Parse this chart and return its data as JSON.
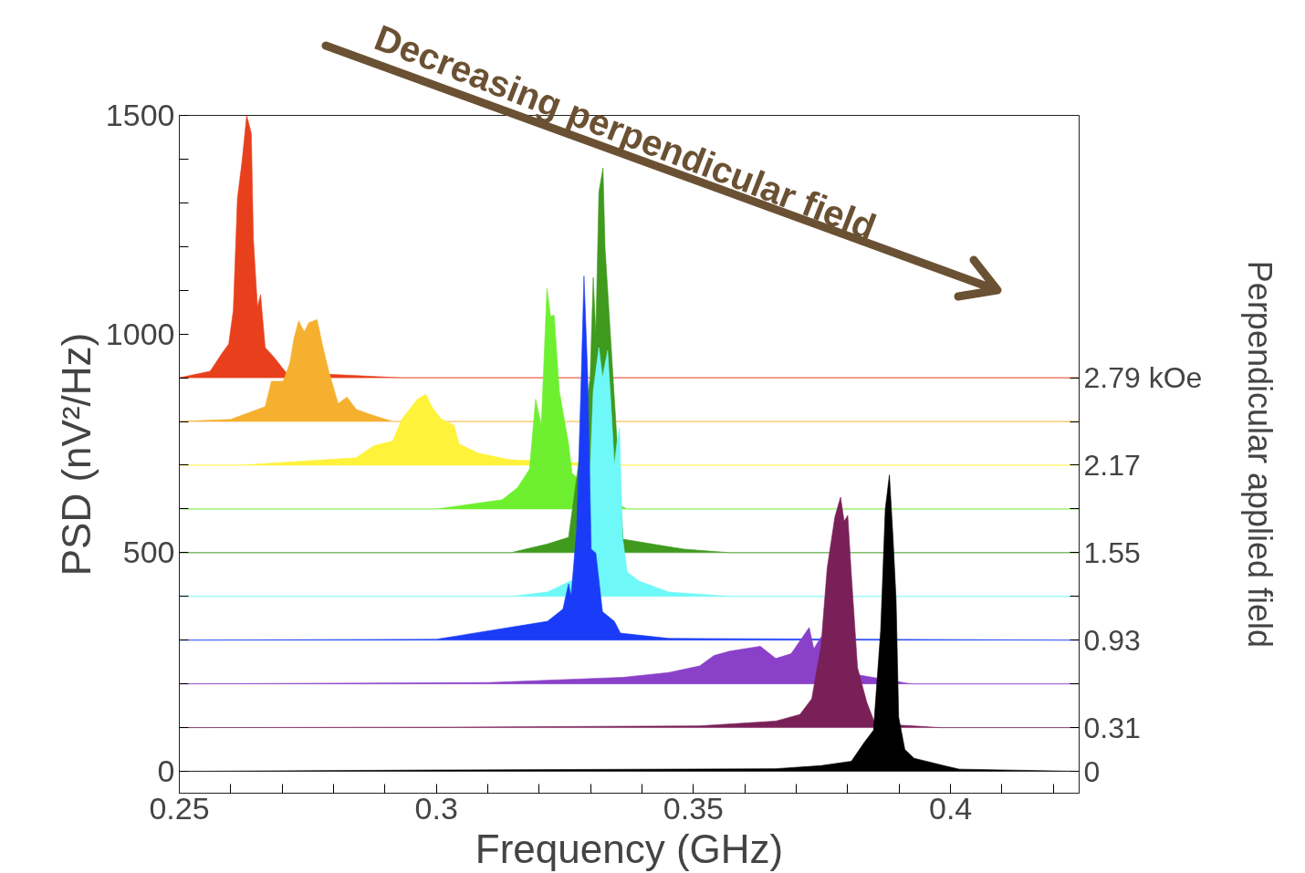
{
  "chart_data": {
    "type": "area",
    "xlabel": "Frequency (GHz)",
    "ylabel": "PSD (nV²/Hz)",
    "y2label": "Perpendicular applied field",
    "xlim": [
      0.25,
      0.425
    ],
    "ylim": [
      -50,
      1500
    ],
    "y2lim": [
      -0.155,
      4.65
    ],
    "xticks": [
      0.25,
      {
        "value": 0.26,
        "label": null
      },
      {
        "value": 0.27,
        "label": null
      },
      {
        "value": 0.28,
        "label": null
      },
      {
        "value": 0.29,
        "label": null
      },
      0.3,
      {
        "value": 0.31,
        "label": null
      },
      {
        "value": 0.32,
        "label": null
      },
      {
        "value": 0.33,
        "label": null
      },
      {
        "value": 0.34,
        "label": null
      },
      0.35,
      {
        "value": 0.36,
        "label": null
      },
      {
        "value": 0.37,
        "label": null
      },
      {
        "value": 0.38,
        "label": null
      },
      {
        "value": 0.39,
        "label": null
      },
      0.4,
      {
        "value": 0.41,
        "label": null
      },
      {
        "value": 0.42,
        "label": null
      }
    ],
    "yticks": [
      0,
      {
        "value": 100,
        "label": null
      },
      {
        "value": 200,
        "label": null
      },
      {
        "value": 300,
        "label": null
      },
      {
        "value": 400,
        "label": null
      },
      500,
      {
        "value": 600,
        "label": null
      },
      {
        "value": 700,
        "label": null
      },
      {
        "value": 800,
        "label": null
      },
      {
        "value": 900,
        "label": null
      },
      1000,
      {
        "value": 1100,
        "label": null
      },
      {
        "value": 1200,
        "label": null
      },
      {
        "value": 1300,
        "label": null
      },
      {
        "value": 1400,
        "label": null
      },
      1500
    ],
    "y2ticks": [
      0,
      0.31,
      {
        "value": 0.62,
        "label": null
      },
      0.93,
      {
        "value": 1.24,
        "label": null
      },
      1.55,
      {
        "value": 1.86,
        "label": null
      },
      2.17,
      {
        "value": 2.48,
        "label": null
      },
      {
        "value": 2.79,
        "label": "2.79 kOe"
      }
    ],
    "grid": false,
    "annotations": [
      "Decreasing perpendicular field"
    ],
    "series": [
      {
        "color": "#e8401c",
        "x": [
          0.25,
          0.256,
          0.2583,
          0.2596,
          0.2605,
          0.2613,
          0.2622,
          0.2631,
          0.264,
          0.2644,
          0.2652,
          0.2658,
          0.2667,
          0.2684,
          0.2707,
          0.293,
          0.425
        ],
        "values": [
          900,
          915,
          956,
          977,
          1054,
          1310,
          1395,
          1500,
          1459,
          1218,
          1062,
          1090,
          969,
          947,
          913,
          900,
          900
        ]
      },
      {
        "color": "#f5b030",
        "x": [
          0.25,
          0.26,
          0.2667,
          0.2679,
          0.2702,
          0.2715,
          0.2723,
          0.2732,
          0.2743,
          0.2752,
          0.2768,
          0.2778,
          0.2791,
          0.2809,
          0.2826,
          0.2844,
          0.2874,
          0.2915,
          0.425
        ],
        "values": [
          800,
          805,
          834,
          892,
          892,
          934,
          990,
          1030,
          1005,
          1026,
          1033,
          977,
          913,
          841,
          856,
          828,
          815,
          800,
          800
        ]
      },
      {
        "color": "#fff23a",
        "x": [
          0.25,
          0.2618,
          0.2844,
          0.2879,
          0.2915,
          0.2933,
          0.2963,
          0.298,
          0.2991,
          0.3009,
          0.3034,
          0.3044,
          0.308,
          0.314,
          0.337,
          0.425
        ],
        "values": [
          700,
          700,
          717,
          745,
          755,
          806,
          851,
          862,
          834,
          806,
          792,
          749,
          728,
          713,
          700,
          700
        ]
      },
      {
        "color": "#6ef030",
        "x": [
          0.25,
          0.3,
          0.3128,
          0.3158,
          0.3181,
          0.3193,
          0.3204,
          0.3215,
          0.3222,
          0.3229,
          0.3239,
          0.3257,
          0.3264,
          0.3275,
          0.337,
          0.425
        ],
        "values": [
          600,
          600,
          621,
          649,
          691,
          851,
          792,
          1105,
          1041,
          1043,
          870,
          749,
          681,
          670,
          600,
          600
        ]
      },
      {
        "color": "#3f9a1e",
        "x": [
          0.25,
          0.3145,
          0.3216,
          0.3257,
          0.3299,
          0.3305,
          0.331,
          0.3316,
          0.3324,
          0.3328,
          0.3363,
          0.3424,
          0.3482,
          0.3571,
          0.425
        ],
        "values": [
          500,
          500,
          520,
          535,
          900,
          1129,
          1000,
          1325,
          1380,
          1197,
          531,
          519,
          508,
          500,
          500
        ]
      },
      {
        "color": "#6ef8f8",
        "x": [
          0.25,
          0.3145,
          0.3216,
          0.3264,
          0.3296,
          0.3305,
          0.3316,
          0.3323,
          0.3333,
          0.334,
          0.3346,
          0.3351,
          0.3356,
          0.3362,
          0.3371,
          0.3394,
          0.3452,
          0.3571,
          0.425
        ],
        "values": [
          400,
          400,
          410,
          437,
          600,
          870,
          969,
          900,
          962,
          828,
          700,
          750,
          785,
          535,
          456,
          435,
          410,
          400,
          400
        ]
      },
      {
        "color": "#1a3cf8",
        "x": [
          0.25,
          0.3,
          0.3216,
          0.3246,
          0.3257,
          0.3262,
          0.3273,
          0.3282,
          0.3287,
          0.3294,
          0.3301,
          0.331,
          0.3323,
          0.3346,
          0.3358,
          0.3452,
          0.425
        ],
        "values": [
          300,
          302,
          343,
          371,
          429,
          401,
          557,
          913,
          1133,
          913,
          508,
          499,
          365,
          343,
          316,
          304,
          300
        ]
      },
      {
        "color": "#8a40c8",
        "x": [
          0.25,
          0.31,
          0.3363,
          0.3452,
          0.3512,
          0.354,
          0.3571,
          0.363,
          0.366,
          0.369,
          0.3725,
          0.3734,
          0.3748,
          0.3823,
          0.3853,
          0.3923,
          0.425
        ],
        "values": [
          200,
          203,
          215,
          226,
          241,
          265,
          275,
          286,
          258,
          269,
          329,
          280,
          307,
          220,
          214,
          200,
          200
        ]
      },
      {
        "color": "#7a2058",
        "x": [
          0.25,
          0.3,
          0.3512,
          0.366,
          0.3707,
          0.373,
          0.3748,
          0.376,
          0.3775,
          0.3786,
          0.3793,
          0.38,
          0.3807,
          0.3819,
          0.3837,
          0.3853,
          0.3982,
          0.425
        ],
        "values": [
          100,
          101,
          104,
          115,
          130,
          166,
          286,
          465,
          582,
          627,
          572,
          585,
          450,
          237,
          158,
          109,
          100,
          100
        ]
      },
      {
        "color": "#000000",
        "x": [
          0.25,
          0.3,
          0.366,
          0.3748,
          0.3807,
          0.3832,
          0.385,
          0.3864,
          0.3873,
          0.3881,
          0.3888,
          0.3894,
          0.3899,
          0.3911,
          0.3929,
          0.3987,
          0.4017,
          0.425
        ],
        "values": [
          0,
          3,
          6,
          13,
          23,
          66,
          94,
          322,
          600,
          678,
          535,
          393,
          124,
          50,
          30,
          13,
          5,
          0
        ]
      }
    ]
  }
}
